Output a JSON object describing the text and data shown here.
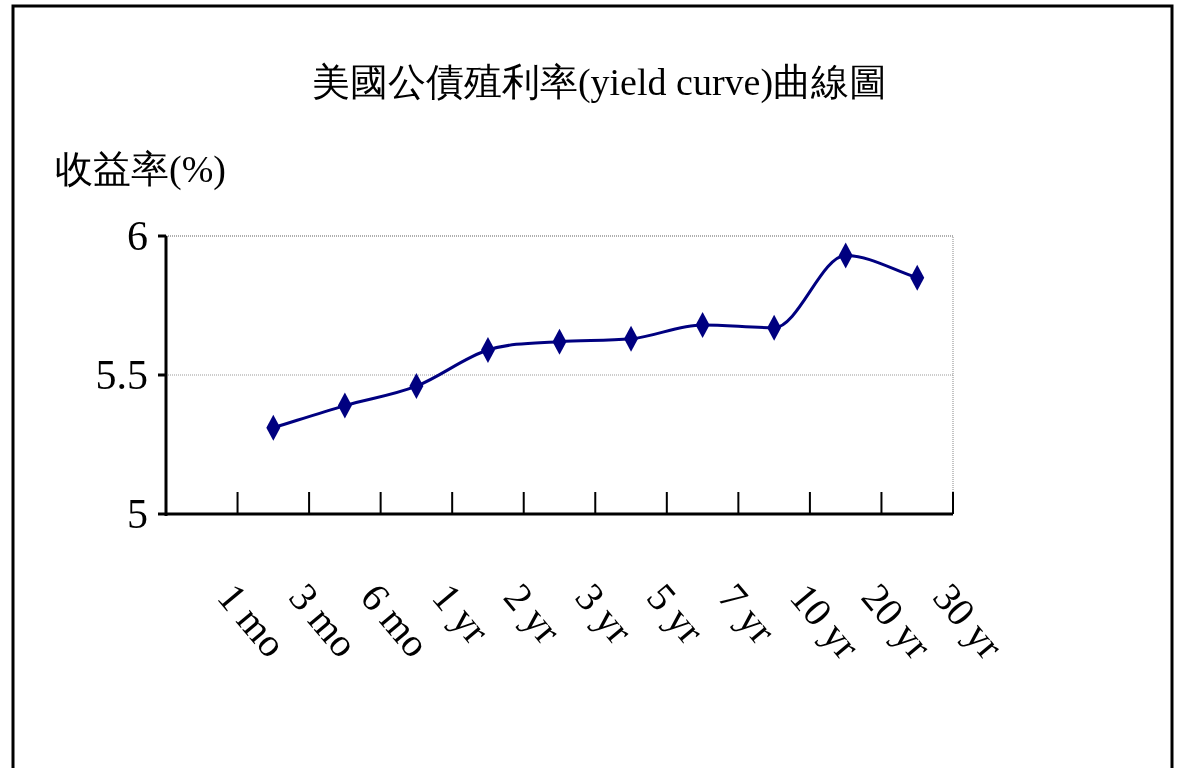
{
  "chart_data": {
    "type": "line",
    "title": "美國公債殖利率(yield curve)曲線圖",
    "ylabel": "收益率(%)",
    "categories": [
      "1 mo",
      "3 mo",
      "6 mo",
      "1 yr",
      "2 yr",
      "3 yr",
      "5 yr",
      "7 yr",
      "10 yr",
      "20 yr",
      "30 yr"
    ],
    "series": [
      {
        "color": "#000080",
        "values": [
          null,
          5.31,
          5.39,
          5.46,
          5.59,
          5.62,
          5.63,
          5.68,
          5.67,
          5.93,
          5.85
        ]
      }
    ],
    "ylim": [
      5,
      6
    ],
    "yticks": [
      5,
      5.5,
      6
    ],
    "grid": "y",
    "marker": "diamond",
    "line_style": "solid"
  }
}
